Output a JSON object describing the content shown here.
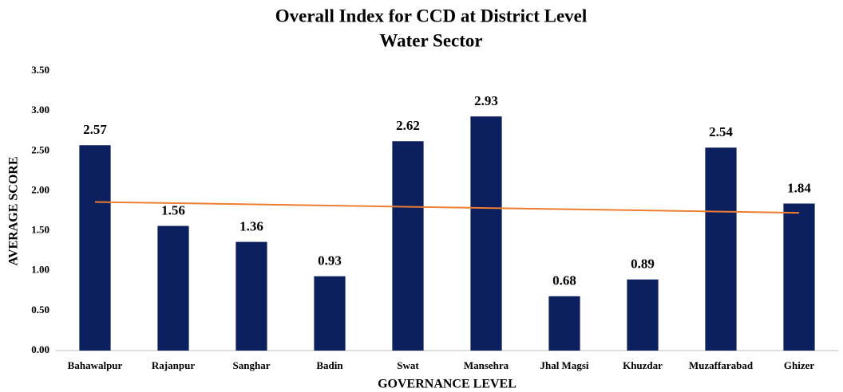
{
  "chart_data": {
    "type": "bar",
    "title": "Overall Index for CCD at District Level",
    "subtitle": "Water Sector",
    "x_label": "GOVERNANCE LEVEL",
    "y_label": "AVERAGE SCORE",
    "categories": [
      "Bahawalpur",
      "Rajanpur",
      "Sanghar",
      "Badin",
      "Swat",
      "Mansehra",
      "Jhal Magsi",
      "Khuzdar",
      "Muzaffarabad",
      "Ghizer"
    ],
    "values": [
      2.57,
      1.56,
      1.36,
      0.93,
      2.62,
      2.93,
      0.68,
      0.89,
      2.54,
      1.84
    ],
    "color": "#0c1f5e",
    "ylim": [
      0,
      3.5
    ],
    "yticks": [
      {
        "value": 0,
        "label": "0.00"
      },
      {
        "value": 0.5,
        "label": "0.50"
      },
      {
        "value": 1,
        "label": "1.00"
      },
      {
        "value": 1.5,
        "label": "1.50"
      },
      {
        "value": 2,
        "label": "2.00"
      },
      {
        "value": 2.5,
        "label": "2.50"
      },
      {
        "value": 3,
        "label": "3.00"
      },
      {
        "value": 3.5,
        "label": "3.50"
      }
    ],
    "grid": false,
    "trendline": {
      "type": "linear",
      "color": "#ed7d31"
    }
  }
}
